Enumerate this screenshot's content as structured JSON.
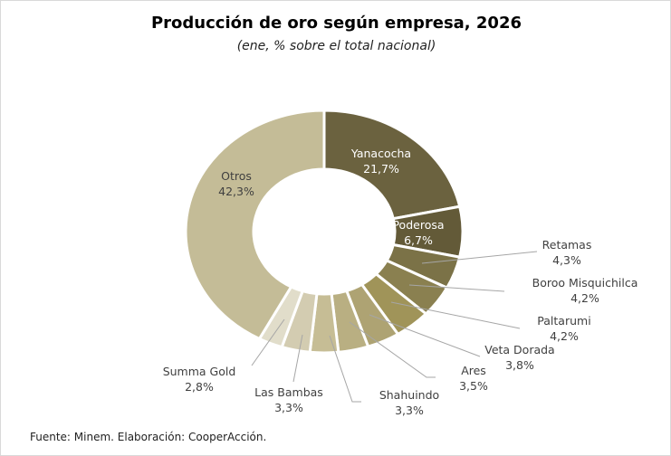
{
  "chart_data": {
    "type": "pie",
    "variant": "donut",
    "title": "Producción de oro según empresa, 2026",
    "subtitle": "(ene, % sobre el total nacional)",
    "source": "Fuente: Minem. Elaboración: CooperAcción.",
    "slices": [
      {
        "label": "Yanacocha",
        "value": 21.7,
        "text": "21,7%",
        "color": "#6b623f"
      },
      {
        "label": "Poderosa",
        "value": 6.7,
        "text": "6,7%",
        "color": "#635a38"
      },
      {
        "label": "Retamas",
        "value": 4.3,
        "text": "4,3%",
        "color": "#7b7247"
      },
      {
        "label": "Boroo Misquichilca",
        "value": 4.2,
        "text": "4,2%",
        "color": "#8a8050"
      },
      {
        "label": "Paltarumi",
        "value": 4.2,
        "text": "4,2%",
        "color": "#a09459"
      },
      {
        "label": "Veta Dorada",
        "value": 3.8,
        "text": "3,8%",
        "color": "#aea373"
      },
      {
        "label": "Ares",
        "value": 3.5,
        "text": "3,5%",
        "color": "#b9af82"
      },
      {
        "label": "Shahuindo",
        "value": 3.3,
        "text": "3,3%",
        "color": "#c6bd95"
      },
      {
        "label": "Las Bambas",
        "value": 3.3,
        "text": "3,3%",
        "color": "#d3ccb1"
      },
      {
        "label": "Summa Gold",
        "value": 2.8,
        "text": "2,8%",
        "color": "#e1ddca"
      },
      {
        "label": "Otros",
        "value": 42.3,
        "text": "42,3%",
        "color": "#c4bc97"
      }
    ]
  }
}
